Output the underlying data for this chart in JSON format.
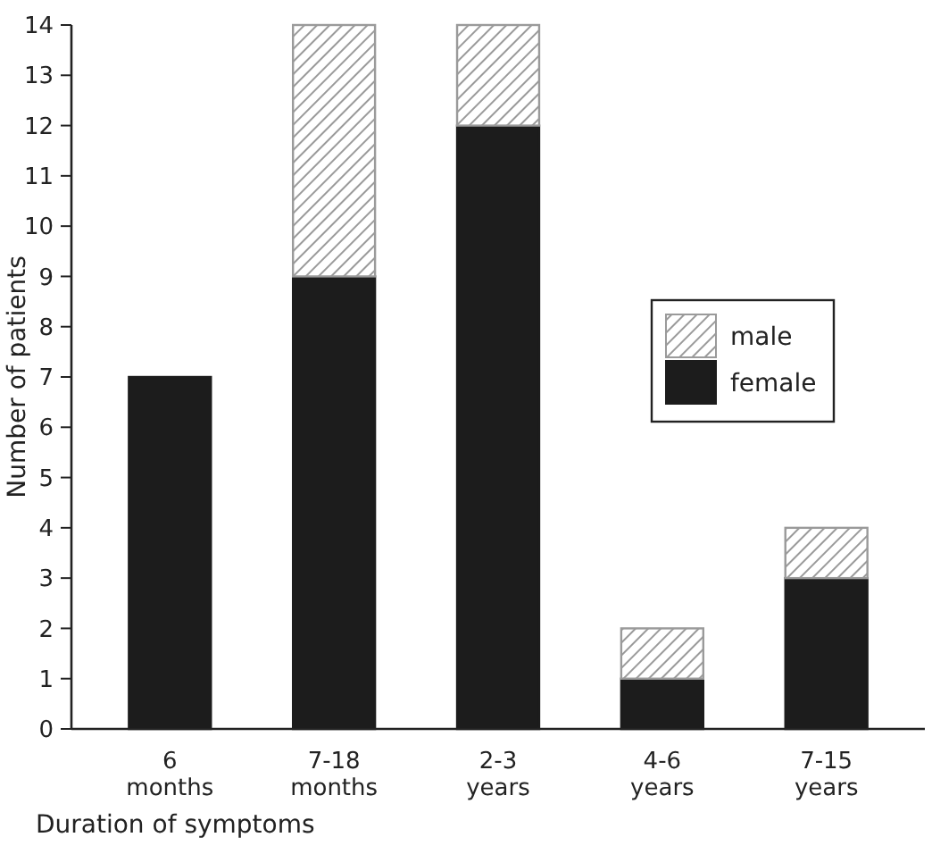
{
  "chart_data": {
    "type": "bar",
    "stacked": true,
    "categories": [
      "6\nmonths",
      "7-18\nmonths",
      "2-3\nyears",
      "4-6\nyears",
      "7-15\nyears"
    ],
    "series": [
      {
        "name": "female",
        "color": "#1c1c1c",
        "values": [
          7,
          9,
          12,
          1,
          3
        ]
      },
      {
        "name": "male",
        "color": "#9a9a9a",
        "values": [
          0,
          5,
          2,
          1,
          1
        ]
      }
    ],
    "ylim": [
      0,
      14
    ],
    "yticks": [
      0,
      1,
      2,
      3,
      4,
      5,
      6,
      7,
      8,
      9,
      10,
      11,
      12,
      13,
      14
    ],
    "xlabel": "Duration of symptoms",
    "ylabel": "Number of patients",
    "legend": "right",
    "grid": false
  }
}
